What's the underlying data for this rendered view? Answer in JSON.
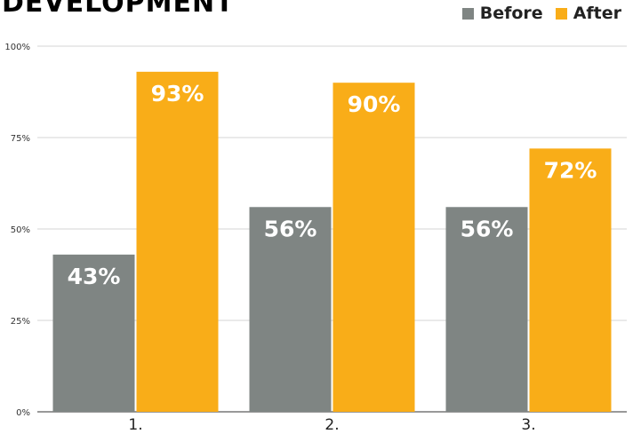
{
  "chart_data": {
    "type": "bar",
    "title": "DEVELOPMENT",
    "categories": [
      "1.",
      "2.",
      "3."
    ],
    "series": [
      {
        "name": "Before",
        "values": [
          43,
          56,
          56
        ],
        "labels": [
          "43%",
          "56%",
          "56%"
        ],
        "color": "#7f8583"
      },
      {
        "name": "After",
        "values": [
          93,
          90,
          72
        ],
        "labels": [
          "93%",
          "90%",
          "72%"
        ],
        "color": "#f9ad18"
      }
    ],
    "yticks": [
      0,
      25,
      50,
      75,
      100
    ],
    "ytick_labels": [
      "0%",
      "25%",
      "50%",
      "75%",
      "100%"
    ],
    "ylim": [
      0,
      100
    ],
    "grid": true,
    "legend_position": "top-right"
  }
}
